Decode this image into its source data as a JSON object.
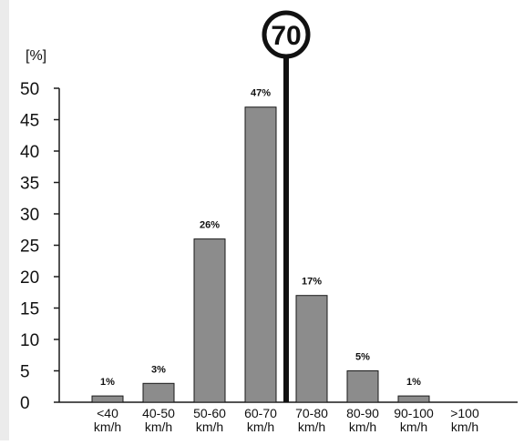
{
  "chart_data": {
    "type": "bar",
    "title": "",
    "xlabel": "",
    "ylabel": "[%]",
    "ylim": [
      0,
      50
    ],
    "yticks": [
      0,
      5,
      10,
      15,
      20,
      25,
      30,
      35,
      40,
      45,
      50
    ],
    "grid": false,
    "categories": [
      {
        "line1": "<40",
        "line2": "km/h"
      },
      {
        "line1": "40-50",
        "line2": "km/h"
      },
      {
        "line1": "50-60",
        "line2": "km/h"
      },
      {
        "line1": "60-70",
        "line2": "km/h"
      },
      {
        "line1": "70-80",
        "line2": "km/h"
      },
      {
        "line1": "80-90",
        "line2": "km/h"
      },
      {
        "line1": "90-100",
        "line2": "km/h"
      },
      {
        "line1": ">100",
        "line2": "km/h"
      }
    ],
    "values": [
      1,
      3,
      26,
      47,
      17,
      5,
      1,
      null
    ],
    "data_labels": [
      "1%",
      "3%",
      "26%",
      "47%",
      "17%",
      "5%",
      "1%",
      ""
    ],
    "speed_limit_marker": {
      "label": "70",
      "position_between": "60-70 km/h and 70-80 km/h"
    },
    "colors": {
      "bar_fill": "#8c8c8c",
      "bar_stroke": "#1a1a1a",
      "axis": "#1a1a1a",
      "marker": "#111111",
      "sidebar": "#ebebeb"
    }
  }
}
